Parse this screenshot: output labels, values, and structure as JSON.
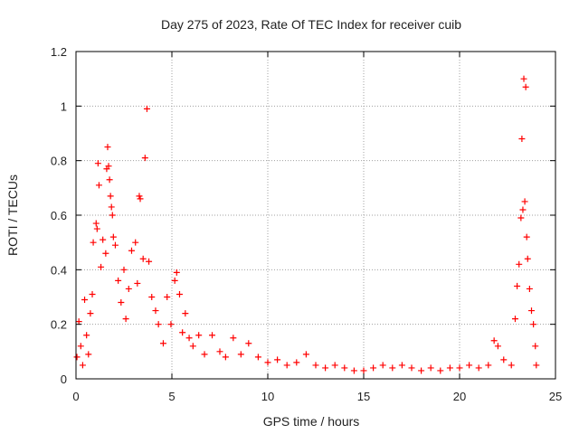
{
  "chart_data": {
    "type": "scatter",
    "title": "Day 275 of 2023, Rate Of TEC Index for receiver cuib",
    "xlabel": "GPS time / hours",
    "ylabel": "ROTI / TECUs",
    "xlim": [
      0,
      25
    ],
    "ylim": [
      0,
      1.2
    ],
    "xticks": [
      0,
      5,
      10,
      15,
      20,
      25
    ],
    "yticks": [
      0,
      0.2,
      0.4,
      0.6,
      0.8,
      1,
      1.2
    ],
    "grid": true,
    "marker": "+",
    "series_color": "#ff0000",
    "series": [
      {
        "values": [
          [
            0.05,
            0.08
          ],
          [
            0.15,
            0.21
          ],
          [
            0.25,
            0.12
          ],
          [
            0.35,
            0.05
          ],
          [
            0.45,
            0.29
          ],
          [
            0.55,
            0.16
          ],
          [
            0.65,
            0.09
          ],
          [
            0.75,
            0.24
          ],
          [
            0.85,
            0.31
          ],
          [
            0.9,
            0.5
          ],
          [
            1.05,
            0.57
          ],
          [
            1.1,
            0.55
          ],
          [
            1.15,
            0.79
          ],
          [
            1.2,
            0.71
          ],
          [
            1.3,
            0.41
          ],
          [
            1.4,
            0.51
          ],
          [
            1.55,
            0.46
          ],
          [
            1.6,
            0.77
          ],
          [
            1.65,
            0.85
          ],
          [
            1.7,
            0.78
          ],
          [
            1.75,
            0.73
          ],
          [
            1.8,
            0.67
          ],
          [
            1.85,
            0.63
          ],
          [
            1.9,
            0.6
          ],
          [
            1.95,
            0.52
          ],
          [
            2.05,
            0.49
          ],
          [
            2.2,
            0.36
          ],
          [
            2.35,
            0.28
          ],
          [
            2.5,
            0.4
          ],
          [
            2.6,
            0.22
          ],
          [
            2.75,
            0.33
          ],
          [
            2.9,
            0.47
          ],
          [
            3.1,
            0.5
          ],
          [
            3.2,
            0.35
          ],
          [
            3.3,
            0.67
          ],
          [
            3.35,
            0.66
          ],
          [
            3.5,
            0.44
          ],
          [
            3.6,
            0.81
          ],
          [
            3.7,
            0.99
          ],
          [
            3.8,
            0.43
          ],
          [
            3.95,
            0.3
          ],
          [
            4.15,
            0.25
          ],
          [
            4.3,
            0.2
          ],
          [
            4.55,
            0.13
          ],
          [
            4.75,
            0.3
          ],
          [
            4.95,
            0.2
          ],
          [
            5.15,
            0.36
          ],
          [
            5.25,
            0.39
          ],
          [
            5.4,
            0.31
          ],
          [
            5.55,
            0.17
          ],
          [
            5.7,
            0.24
          ],
          [
            5.9,
            0.15
          ],
          [
            6.1,
            0.12
          ],
          [
            6.4,
            0.16
          ],
          [
            6.7,
            0.09
          ],
          [
            7.1,
            0.16
          ],
          [
            7.5,
            0.1
          ],
          [
            7.8,
            0.08
          ],
          [
            8.2,
            0.15
          ],
          [
            8.6,
            0.09
          ],
          [
            9.0,
            0.13
          ],
          [
            9.5,
            0.08
          ],
          [
            10.0,
            0.06
          ],
          [
            10.5,
            0.07
          ],
          [
            11.0,
            0.05
          ],
          [
            11.5,
            0.06
          ],
          [
            12.0,
            0.09
          ],
          [
            12.5,
            0.05
          ],
          [
            13.0,
            0.04
          ],
          [
            13.5,
            0.05
          ],
          [
            14.0,
            0.04
          ],
          [
            14.5,
            0.03
          ],
          [
            15.0,
            0.03
          ],
          [
            15.5,
            0.04
          ],
          [
            16.0,
            0.05
          ],
          [
            16.5,
            0.04
          ],
          [
            17.0,
            0.05
          ],
          [
            17.5,
            0.04
          ],
          [
            18.0,
            0.03
          ],
          [
            18.5,
            0.04
          ],
          [
            19.0,
            0.03
          ],
          [
            19.5,
            0.04
          ],
          [
            20.0,
            0.04
          ],
          [
            20.5,
            0.05
          ],
          [
            21.0,
            0.04
          ],
          [
            21.5,
            0.05
          ],
          [
            21.8,
            0.14
          ],
          [
            22.0,
            0.12
          ],
          [
            22.3,
            0.07
          ],
          [
            22.7,
            0.05
          ],
          [
            22.9,
            0.22
          ],
          [
            23.0,
            0.34
          ],
          [
            23.1,
            0.42
          ],
          [
            23.2,
            0.59
          ],
          [
            23.25,
            0.88
          ],
          [
            23.3,
            0.62
          ],
          [
            23.35,
            1.1
          ],
          [
            23.4,
            0.65
          ],
          [
            23.45,
            1.07
          ],
          [
            23.5,
            0.52
          ],
          [
            23.55,
            0.44
          ],
          [
            23.65,
            0.33
          ],
          [
            23.75,
            0.25
          ],
          [
            23.85,
            0.2
          ],
          [
            23.95,
            0.12
          ],
          [
            24.0,
            0.05
          ]
        ]
      }
    ]
  }
}
